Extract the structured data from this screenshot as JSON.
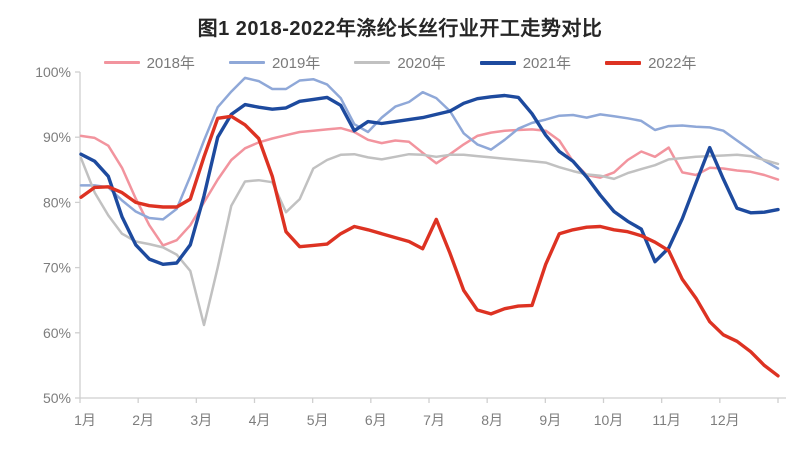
{
  "chart_data": {
    "type": "line",
    "title": "图1 2018-2022年涤纶长丝行业开工走势对比",
    "xlabel": "",
    "ylabel": "",
    "ylim": [
      50,
      100
    ],
    "ytick_values": [
      50,
      60,
      70,
      80,
      90,
      100
    ],
    "ytick_labels": [
      "50%",
      "60%",
      "70%",
      "80%",
      "90%",
      "100%"
    ],
    "x_categories": [
      "1月",
      "2月",
      "3月",
      "4月",
      "5月",
      "6月",
      "7月",
      "8月",
      "9月",
      "10月",
      "11月",
      "12月"
    ],
    "x_resolution": "weekly, 52 points per series spanning Jan-Dec",
    "grid": false,
    "legend_position": "top",
    "unit": "percent operating rate",
    "axis_color": "#cfcfcf",
    "tick_label_color": "#7d7d7d",
    "title_color": "#262626",
    "series": [
      {
        "name": "2018年",
        "color": "#F2949E",
        "thick": false,
        "values": [
          90.2,
          89.9,
          88.7,
          85.3,
          80.6,
          76.5,
          73.4,
          74.2,
          76.5,
          80.0,
          83.5,
          86.5,
          88.3,
          89.2,
          89.8,
          90.3,
          90.8,
          91.0,
          91.2,
          91.4,
          90.8,
          89.6,
          89.1,
          89.5,
          89.3,
          87.6,
          86.0,
          87.4,
          88.9,
          90.2,
          90.7,
          91.0,
          91.1,
          91.2,
          91.0,
          89.5,
          86.3,
          84.2,
          83.8,
          84.6,
          86.5,
          87.8,
          87.0,
          88.4,
          84.6,
          84.2,
          85.3,
          85.2,
          84.9,
          84.7,
          84.2,
          83.5
        ]
      },
      {
        "name": "2019年",
        "color": "#8FA8D8",
        "thick": false,
        "values": [
          82.6,
          82.6,
          82.3,
          80.3,
          78.6,
          77.6,
          77.4,
          79.0,
          84.0,
          89.5,
          94.6,
          97.0,
          99.1,
          98.6,
          97.4,
          97.4,
          98.7,
          98.9,
          98.1,
          96.0,
          92.0,
          90.8,
          93.0,
          94.7,
          95.4,
          96.9,
          96.0,
          94.0,
          90.6,
          88.9,
          88.1,
          89.6,
          91.3,
          92.2,
          92.7,
          93.3,
          93.4,
          93.0,
          93.5,
          93.2,
          92.9,
          92.5,
          91.1,
          91.7,
          91.8,
          91.6,
          91.5,
          91.0,
          89.5,
          88.0,
          86.4,
          85.2
        ]
      },
      {
        "name": "2020年",
        "color": "#C1C1C1",
        "thick": false,
        "values": [
          86.8,
          81.5,
          78.0,
          75.2,
          74.0,
          73.6,
          73.1,
          72.0,
          69.5,
          61.2,
          70.0,
          79.5,
          83.2,
          83.4,
          83.1,
          78.5,
          80.5,
          85.2,
          86.5,
          87.3,
          87.4,
          86.9,
          86.6,
          87.0,
          87.4,
          87.3,
          87.0,
          87.3,
          87.3,
          87.1,
          86.9,
          86.7,
          86.5,
          86.3,
          86.1,
          85.4,
          84.8,
          84.3,
          84.1,
          83.6,
          84.5,
          85.1,
          85.7,
          86.6,
          86.8,
          87.0,
          87.1,
          87.2,
          87.3,
          87.1,
          86.5,
          85.9
        ]
      },
      {
        "name": "2021年",
        "color": "#1D4A9E",
        "thick": true,
        "values": [
          87.4,
          86.3,
          84.0,
          77.8,
          73.5,
          71.3,
          70.5,
          70.7,
          73.5,
          81.0,
          90.0,
          93.5,
          95.0,
          94.6,
          94.3,
          94.5,
          95.5,
          95.8,
          96.1,
          94.9,
          91.0,
          92.4,
          92.1,
          92.4,
          92.7,
          93.0,
          93.5,
          94.0,
          95.2,
          95.9,
          96.2,
          96.4,
          96.1,
          93.6,
          90.3,
          87.8,
          86.3,
          83.9,
          81.1,
          78.6,
          77.1,
          75.9,
          70.9,
          73.0,
          77.5,
          83.0,
          88.4,
          83.6,
          79.1,
          78.4,
          78.5,
          78.9
        ]
      },
      {
        "name": "2022年",
        "color": "#DD3222",
        "thick": true,
        "values": [
          80.8,
          82.3,
          82.4,
          81.5,
          80.0,
          79.5,
          79.3,
          79.3,
          80.5,
          87.0,
          92.9,
          93.2,
          91.9,
          89.8,
          84.0,
          75.5,
          73.2,
          73.4,
          73.6,
          75.2,
          76.3,
          75.8,
          75.2,
          74.6,
          74.0,
          72.9,
          77.4,
          72.2,
          66.5,
          63.5,
          62.9,
          63.7,
          64.1,
          64.2,
          70.5,
          75.2,
          75.8,
          76.2,
          76.3,
          75.8,
          75.5,
          74.9,
          73.9,
          72.6,
          68.2,
          65.3,
          61.7,
          59.7,
          58.7,
          57.1,
          55.0,
          53.4
        ]
      }
    ]
  }
}
